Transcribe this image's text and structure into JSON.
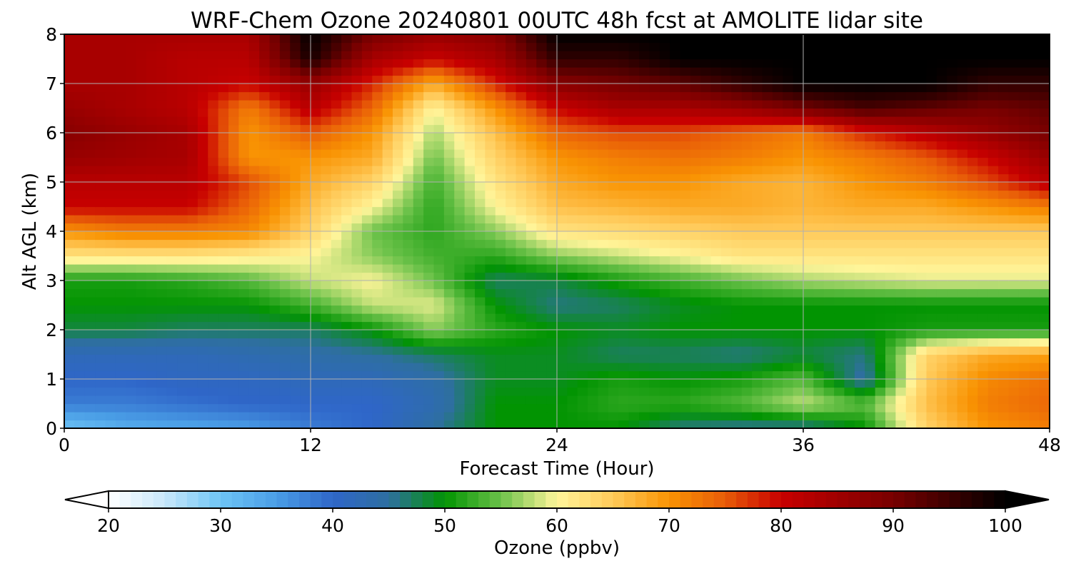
{
  "chart_data": {
    "type": "heatmap",
    "title": "WRF-Chem Ozone  20240801 00UTC 48h fcst at AMOLITE lidar site",
    "xlabel": "Forecast Time (Hour)",
    "ylabel": "Alt AGL (km)",
    "xlim": [
      0,
      48
    ],
    "ylim": [
      0,
      8
    ],
    "xticks": [
      0,
      12,
      24,
      36,
      48
    ],
    "yticks": [
      0,
      1,
      2,
      3,
      4,
      5,
      6,
      7,
      8
    ],
    "grid": true,
    "x": [
      0,
      3,
      6,
      9,
      12,
      15,
      18,
      21,
      24,
      27,
      30,
      33,
      36,
      39,
      42,
      45,
      48
    ],
    "y": [
      0,
      0.5,
      1,
      1.5,
      2,
      2.5,
      3,
      3.5,
      4,
      4.5,
      5,
      5.5,
      6,
      6.5,
      7,
      7.5,
      8
    ],
    "z": [
      [
        30,
        33,
        34,
        35,
        38,
        40,
        45,
        50,
        50,
        50,
        46,
        45,
        45,
        50,
        64,
        70,
        72
      ],
      [
        38,
        38,
        39,
        40,
        40,
        40,
        43,
        50,
        50,
        52,
        52,
        54,
        58,
        54,
        66,
        72,
        74
      ],
      [
        40,
        40,
        41,
        41,
        42,
        42,
        44,
        49,
        49,
        51,
        50,
        51,
        54,
        44,
        65,
        71,
        73
      ],
      [
        42,
        42,
        42,
        43,
        44,
        45,
        47,
        49,
        49,
        47,
        47,
        46,
        48,
        46,
        64,
        68,
        69
      ],
      [
        48,
        48,
        47,
        47,
        47,
        50,
        56,
        52,
        50,
        49,
        50,
        50,
        50,
        50,
        51,
        51,
        51
      ],
      [
        50,
        50,
        50,
        50,
        53,
        58,
        59,
        50,
        46,
        47,
        49,
        50,
        50,
        50,
        50,
        50,
        50
      ],
      [
        51,
        51,
        52,
        54,
        58,
        60,
        55,
        47,
        48,
        51,
        53,
        55,
        57,
        58,
        59,
        59,
        59
      ],
      [
        62,
        62,
        62,
        61,
        60,
        56,
        53,
        52,
        56,
        58,
        60,
        62,
        62,
        62,
        62,
        62,
        62
      ],
      [
        70,
        72,
        72,
        71,
        64,
        55,
        52,
        56,
        62,
        63,
        64,
        65,
        65,
        65,
        65,
        65,
        65
      ],
      [
        80,
        80,
        80,
        74,
        66,
        60,
        52,
        60,
        66,
        67,
        68,
        68,
        67,
        68,
        68,
        70,
        72
      ],
      [
        82,
        82,
        82,
        76,
        68,
        64,
        53,
        62,
        68,
        70,
        70,
        68,
        67,
        70,
        72,
        76,
        82
      ],
      [
        86,
        85,
        84,
        70,
        70,
        68,
        55,
        64,
        70,
        72,
        73,
        72,
        70,
        72,
        75,
        80,
        86
      ],
      [
        88,
        86,
        84,
        70,
        75,
        70,
        57,
        66,
        74,
        76,
        76,
        74,
        72,
        78,
        82,
        86,
        90
      ],
      [
        86,
        84,
        82,
        72,
        82,
        74,
        60,
        70,
        80,
        84,
        84,
        86,
        90,
        94,
        92,
        90,
        92
      ],
      [
        84,
        84,
        82,
        80,
        86,
        78,
        68,
        78,
        88,
        90,
        92,
        96,
        100,
        100,
        100,
        96,
        96
      ],
      [
        84,
        84,
        82,
        82,
        98,
        84,
        80,
        84,
        96,
        96,
        100,
        100,
        100,
        100,
        100,
        100,
        100
      ],
      [
        84,
        84,
        84,
        84,
        100,
        90,
        86,
        88,
        100,
        100,
        100,
        100,
        100,
        100,
        100,
        100,
        100
      ]
    ],
    "colorbar": {
      "label": "Ozone  (ppbv)",
      "min": 20,
      "max": 100,
      "ticks": [
        20,
        30,
        40,
        50,
        60,
        70,
        80,
        90,
        100
      ],
      "extend": "both",
      "colors": {
        "20": "#ffffff",
        "25": "#c8e8fa",
        "30": "#6ec4f5",
        "35": "#4a9ee6",
        "40": "#2f66c8",
        "45": "#2e6fa0",
        "50": "#029402",
        "55": "#6cc24a",
        "60": "#fff59a",
        "65": "#ffca5a",
        "70": "#f99403",
        "75": "#e85c08",
        "80": "#c80000",
        "90": "#780000",
        "100": "#000000"
      }
    }
  }
}
